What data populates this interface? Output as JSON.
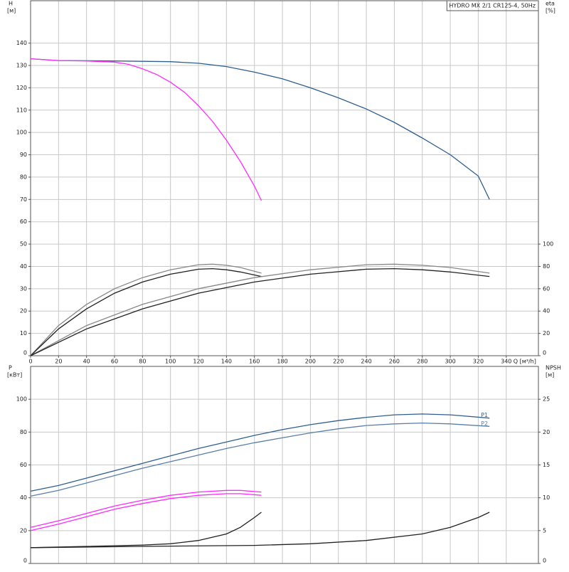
{
  "chart_data": [
    {
      "type": "line",
      "title": "HYDRO MX 2/1 CR125-4, 50Hz",
      "ylabel": "H",
      "yunit": "[м]",
      "y2label": "eta",
      "y2unit": "[%]",
      "xlabel": "Q [м³/h]",
      "xlim": [
        0,
        363
      ],
      "ylim": [
        0,
        159
      ],
      "y2lim": [
        0,
        318
      ],
      "xticks": [
        0,
        20,
        40,
        60,
        80,
        100,
        120,
        140,
        160,
        180,
        200,
        220,
        240,
        260,
        280,
        300,
        320,
        340
      ],
      "yticks": [
        0,
        10,
        20,
        30,
        40,
        50,
        60,
        70,
        80,
        90,
        100,
        110,
        120,
        130,
        140
      ],
      "y2ticks": [
        0,
        20,
        40,
        60,
        80,
        100
      ],
      "grid": true,
      "series": [
        {
          "color": "#2f5f8f",
          "x": [
            0,
            20,
            60,
            100,
            120,
            140,
            160,
            180,
            200,
            220,
            240,
            260,
            280,
            300,
            320,
            328
          ],
          "values": [
            133,
            132.2,
            132,
            131.7,
            131,
            129.5,
            127,
            124,
            120,
            115.5,
            110.5,
            104.5,
            97.5,
            90,
            80.5,
            70
          ]
        },
        {
          "color": "#ff2bff",
          "x": [
            0,
            20,
            40,
            60,
            70,
            80,
            90,
            100,
            110,
            120,
            130,
            140,
            150,
            160,
            165
          ],
          "values": [
            133,
            132.2,
            132,
            131.5,
            130.5,
            128.5,
            126,
            122.5,
            118,
            112,
            105,
            96.5,
            87,
            76,
            69.5
          ]
        },
        {
          "color": "#888888",
          "axis": "y2",
          "x": [
            0,
            20,
            40,
            60,
            80,
            100,
            120,
            130,
            140,
            150,
            165
          ],
          "values": [
            0,
            27,
            46,
            60,
            70,
            77,
            81.5,
            82,
            81,
            79,
            74
          ]
        },
        {
          "color": "#222222",
          "axis": "y2",
          "x": [
            0,
            20,
            40,
            60,
            80,
            100,
            120,
            130,
            140,
            150,
            165
          ],
          "values": [
            0,
            24,
            42,
            56,
            66,
            73,
            77.5,
            78,
            77,
            75,
            71
          ]
        },
        {
          "color": "#888888",
          "axis": "y2",
          "x": [
            0,
            40,
            80,
            120,
            160,
            200,
            240,
            260,
            280,
            300,
            328
          ],
          "values": [
            0,
            27,
            46,
            60,
            70,
            77,
            81.5,
            82,
            81,
            79,
            74
          ]
        },
        {
          "color": "#222222",
          "axis": "y2",
          "x": [
            0,
            40,
            80,
            120,
            160,
            200,
            240,
            260,
            280,
            300,
            328
          ],
          "values": [
            0,
            24,
            42,
            56,
            66,
            73,
            77.5,
            78,
            77,
            75,
            71
          ]
        }
      ]
    },
    {
      "type": "line",
      "ylabel": "P",
      "yunit": "[кВт]",
      "y2label": "NPSH",
      "y2unit": "[м]",
      "xlim": [
        0,
        363
      ],
      "ylim": [
        0,
        120
      ],
      "y2lim": [
        0,
        30
      ],
      "yticks": [
        0,
        20,
        40,
        60,
        80,
        100
      ],
      "y2ticks": [
        0,
        5,
        10,
        15,
        20,
        25
      ],
      "grid": true,
      "series": [
        {
          "name": "P1",
          "color": "#2f5f8f",
          "x": [
            0,
            20,
            40,
            60,
            80,
            100,
            120,
            140,
            160,
            180,
            200,
            220,
            240,
            260,
            280,
            300,
            328
          ],
          "values": [
            44,
            47.5,
            52,
            56.5,
            61,
            65.5,
            70,
            74,
            78,
            81.5,
            84.5,
            87,
            89,
            90.5,
            91,
            90.5,
            88.5
          ]
        },
        {
          "name": "P2",
          "color": "#5a7fa8",
          "x": [
            0,
            20,
            40,
            60,
            80,
            100,
            120,
            140,
            160,
            180,
            200,
            220,
            240,
            260,
            280,
            300,
            328
          ],
          "values": [
            41,
            44.5,
            49,
            53.5,
            58,
            62,
            66,
            70,
            73.5,
            76.5,
            79.5,
            82,
            84,
            85,
            85.5,
            85,
            83.5
          ]
        },
        {
          "color": "#ff2bff",
          "x": [
            0,
            20,
            40,
            60,
            80,
            100,
            120,
            140,
            150,
            165
          ],
          "values": [
            22,
            26,
            30.5,
            35,
            38.5,
            41.5,
            43.5,
            44.5,
            44.5,
            43.5
          ]
        },
        {
          "color": "#ff2bff",
          "x": [
            0,
            20,
            40,
            60,
            80,
            100,
            120,
            140,
            150,
            165
          ],
          "values": [
            20,
            24,
            28.5,
            33,
            36.5,
            39.5,
            41.5,
            42.5,
            42.5,
            41.5
          ]
        },
        {
          "color": "#222222",
          "axis": "y2",
          "x": [
            0,
            40,
            80,
            100,
            120,
            140,
            150,
            160,
            165
          ],
          "values": [
            2.4,
            2.6,
            2.8,
            3,
            3.5,
            4.5,
            5.5,
            7,
            7.8
          ]
        },
        {
          "color": "#222222",
          "axis": "y2",
          "x": [
            0,
            80,
            160,
            200,
            240,
            280,
            300,
            320,
            328
          ],
          "values": [
            2.4,
            2.6,
            2.75,
            3,
            3.5,
            4.5,
            5.5,
            7,
            7.8
          ]
        }
      ]
    }
  ]
}
